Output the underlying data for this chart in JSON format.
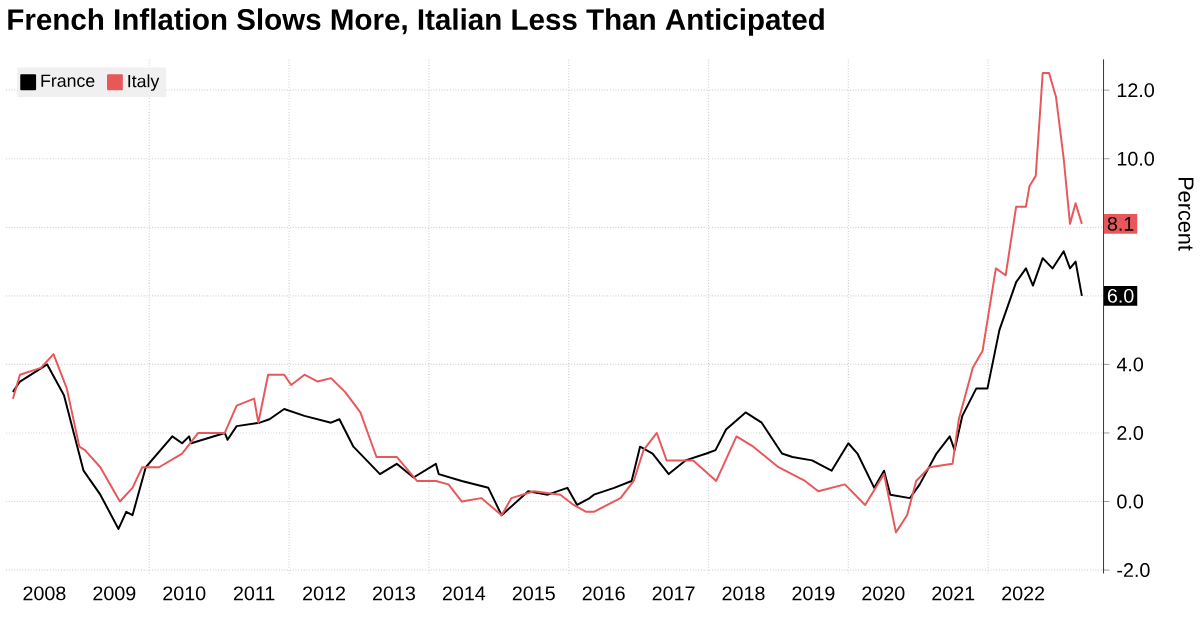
{
  "chart_data": {
    "type": "line",
    "title": "French Inflation Slows More, Italian Less Than Anticipated",
    "ylabel": "Percent",
    "xlim": [
      2007.95,
      2023.65
    ],
    "xticks": [
      {
        "value": 2008.5,
        "label": "2008"
      },
      {
        "value": 2009.5,
        "label": "2009"
      },
      {
        "value": 2010.5,
        "label": "2010"
      },
      {
        "value": 2011.5,
        "label": "2011"
      },
      {
        "value": 2012.5,
        "label": "2012"
      },
      {
        "value": 2013.5,
        "label": "2013"
      },
      {
        "value": 2014.5,
        "label": "2014"
      },
      {
        "value": 2015.5,
        "label": "2015"
      },
      {
        "value": 2016.5,
        "label": "2016"
      },
      {
        "value": 2017.5,
        "label": "2017"
      },
      {
        "value": 2018.5,
        "label": "2018"
      },
      {
        "value": 2019.5,
        "label": "2019"
      },
      {
        "value": 2020.5,
        "label": "2020"
      },
      {
        "value": 2021.5,
        "label": "2021"
      },
      {
        "value": 2022.5,
        "label": "2022"
      },
      {
        "value": 2010,
        "label": null
      },
      {
        "value": 2012,
        "label": null
      },
      {
        "value": 2014,
        "label": null
      },
      {
        "value": 2016,
        "label": null
      },
      {
        "value": 2018,
        "label": null
      },
      {
        "value": 2020,
        "label": null
      },
      {
        "value": 2022,
        "label": null
      }
    ],
    "ylim": [
      -2.1,
      12.9
    ],
    "yticks": [
      {
        "value": -2,
        "label": "-2.0"
      },
      {
        "value": 0,
        "label": "0.0"
      },
      {
        "value": 2,
        "label": "2.0"
      },
      {
        "value": 4,
        "label": "4.0"
      },
      {
        "value": 6,
        "label": null
      },
      {
        "value": 8,
        "label": null
      },
      {
        "value": 10,
        "label": "10.0"
      },
      {
        "value": 12,
        "label": "12.0"
      }
    ],
    "grid": true,
    "legend": "top left",
    "series": [
      {
        "name": "France",
        "color": "#000000",
        "x": [
          2008.05,
          2008.15,
          2008.54,
          2008.78,
          2009.06,
          2009.3,
          2009.56,
          2009.67,
          2009.76,
          2009.95,
          2010.33,
          2010.47,
          2010.57,
          2010.6,
          2011.08,
          2011.12,
          2011.25,
          2011.58,
          2011.72,
          2011.93,
          2012.22,
          2012.6,
          2012.72,
          2012.92,
          2013.3,
          2013.54,
          2013.78,
          2014.1,
          2014.14,
          2014.47,
          2014.85,
          2015.04,
          2015.42,
          2015.7,
          2015.98,
          2016.12,
          2016.3,
          2016.36,
          2016.65,
          2016.9,
          2017.02,
          2017.2,
          2017.43,
          2017.67,
          2017.97,
          2018.1,
          2018.25,
          2018.53,
          2018.76,
          2019.05,
          2019.2,
          2019.48,
          2019.76,
          2020.0,
          2020.13,
          2020.37,
          2020.51,
          2020.6,
          2020.88,
          2021.02,
          2021.26,
          2021.45,
          2021.52,
          2021.63,
          2021.83,
          2021.99,
          2022.16,
          2022.4,
          2022.54,
          2022.64,
          2022.78,
          2022.92,
          2023.08,
          2023.17,
          2023.25,
          2023.34
        ],
        "values": [
          3.2,
          3.5,
          4.0,
          3.1,
          0.9,
          0.2,
          -0.8,
          -0.3,
          -0.4,
          1.0,
          1.9,
          1.7,
          1.9,
          1.7,
          2.0,
          1.8,
          2.2,
          2.3,
          2.4,
          2.7,
          2.5,
          2.3,
          2.4,
          1.6,
          0.8,
          1.1,
          0.7,
          1.1,
          0.8,
          0.6,
          0.4,
          -0.4,
          0.3,
          0.2,
          0.4,
          -0.1,
          0.1,
          0.2,
          0.4,
          0.6,
          1.6,
          1.4,
          0.8,
          1.2,
          1.4,
          1.5,
          2.1,
          2.6,
          2.3,
          1.4,
          1.3,
          1.2,
          0.9,
          1.7,
          1.4,
          0.4,
          0.9,
          0.2,
          0.1,
          0.5,
          1.4,
          1.9,
          1.5,
          2.5,
          3.3,
          3.3,
          5.0,
          6.4,
          6.8,
          6.3,
          7.1,
          6.8,
          7.3,
          6.8,
          7.0,
          6.0
        ],
        "value_labels": [
          null,
          null,
          null,
          null,
          null,
          null,
          null,
          null,
          null,
          null,
          null,
          null,
          null,
          null,
          null,
          null,
          null,
          null,
          null,
          null,
          null,
          null,
          null,
          null,
          null,
          null,
          null,
          null,
          null,
          null,
          null,
          null,
          null,
          null,
          null,
          null,
          null,
          null,
          null,
          null,
          null,
          null,
          null,
          null,
          null,
          null,
          null,
          null,
          null,
          null,
          null,
          null,
          null,
          null,
          null,
          null,
          null,
          null,
          null,
          null,
          null,
          null,
          null,
          null,
          null,
          null,
          null,
          null,
          null,
          null,
          null,
          null,
          null,
          null,
          null,
          "6.0"
        ]
      },
      {
        "name": "Italy",
        "color": "#e8585a",
        "x": [
          2008.05,
          2008.15,
          2008.45,
          2008.63,
          2008.82,
          2009.0,
          2009.08,
          2009.3,
          2009.58,
          2009.76,
          2009.9,
          2010.14,
          2010.47,
          2010.7,
          2011.08,
          2011.25,
          2011.5,
          2011.56,
          2011.7,
          2011.93,
          2012.03,
          2012.22,
          2012.41,
          2012.6,
          2012.8,
          2013.02,
          2013.25,
          2013.54,
          2013.83,
          2014.1,
          2014.28,
          2014.47,
          2014.75,
          2015.04,
          2015.18,
          2015.5,
          2015.88,
          2016.07,
          2016.25,
          2016.36,
          2016.74,
          2016.93,
          2017.07,
          2017.26,
          2017.4,
          2017.78,
          2018.11,
          2018.4,
          2018.64,
          2019.0,
          2019.38,
          2019.57,
          2019.95,
          2020.24,
          2020.51,
          2020.68,
          2020.84,
          2020.97,
          2021.16,
          2021.49,
          2021.58,
          2021.78,
          2021.92,
          2022.11,
          2022.25,
          2022.4,
          2022.54,
          2022.59,
          2022.68,
          2022.78,
          2022.87,
          2022.97,
          2023.08,
          2023.17,
          2023.25,
          2023.34
        ],
        "values": [
          3.0,
          3.7,
          3.9,
          4.3,
          3.3,
          1.6,
          1.5,
          1.0,
          0.0,
          0.4,
          1.0,
          1.0,
          1.4,
          2.0,
          2.0,
          2.8,
          3.0,
          2.3,
          3.7,
          3.7,
          3.4,
          3.7,
          3.5,
          3.6,
          3.2,
          2.6,
          1.3,
          1.3,
          0.6,
          0.6,
          0.5,
          0.0,
          0.1,
          -0.4,
          0.1,
          0.3,
          0.2,
          -0.1,
          -0.3,
          -0.3,
          0.1,
          0.6,
          1.5,
          2.0,
          1.2,
          1.2,
          0.6,
          1.9,
          1.6,
          1.0,
          0.6,
          0.3,
          0.5,
          -0.1,
          0.8,
          -0.9,
          -0.4,
          0.6,
          1.0,
          1.1,
          2.4,
          3.9,
          4.4,
          6.8,
          6.6,
          8.6,
          8.6,
          9.2,
          9.5,
          12.5,
          12.5,
          11.8,
          10.0,
          8.1,
          8.7,
          8.1
        ],
        "value_labels": [
          null,
          null,
          null,
          null,
          null,
          null,
          null,
          null,
          null,
          null,
          null,
          null,
          null,
          null,
          null,
          null,
          null,
          null,
          null,
          null,
          null,
          null,
          null,
          null,
          null,
          null,
          null,
          null,
          null,
          null,
          null,
          null,
          null,
          null,
          null,
          null,
          null,
          null,
          null,
          null,
          null,
          null,
          null,
          null,
          null,
          null,
          null,
          null,
          null,
          null,
          null,
          null,
          null,
          null,
          null,
          null,
          null,
          null,
          null,
          null,
          null,
          null,
          null,
          null,
          null,
          null,
          null,
          null,
          null,
          null,
          null,
          null,
          null,
          null,
          null,
          "8.1"
        ]
      }
    ]
  }
}
